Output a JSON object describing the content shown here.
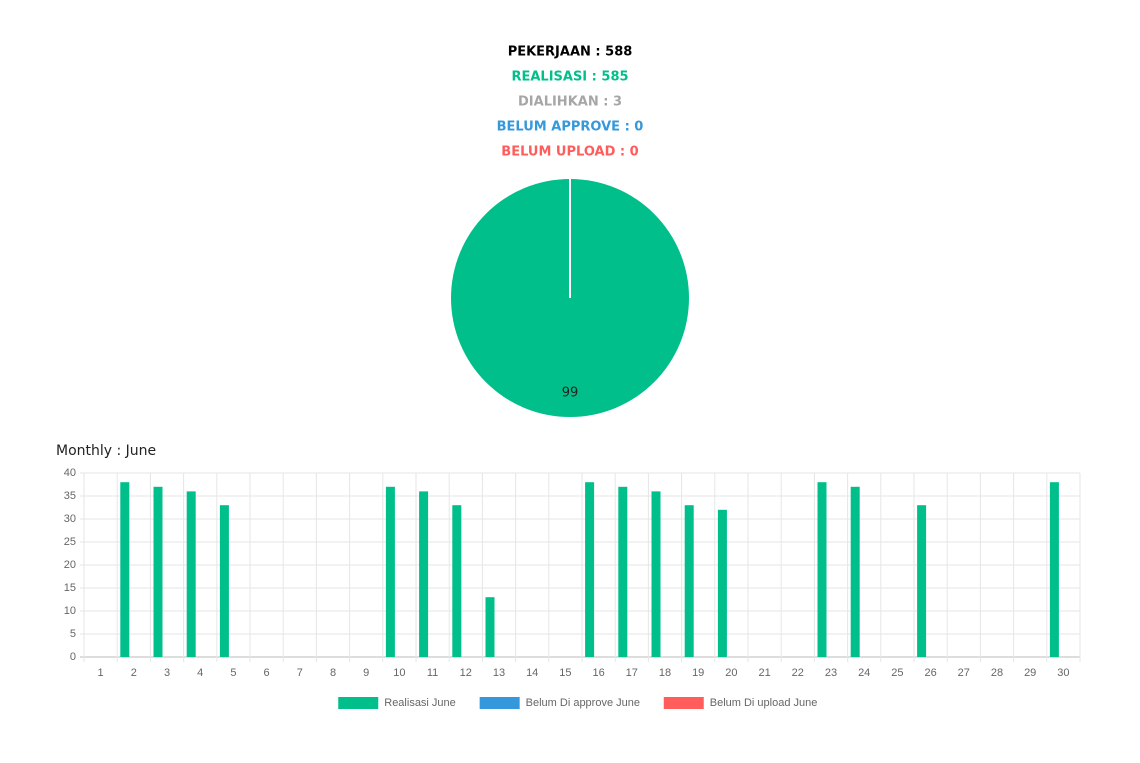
{
  "summary": {
    "lines": [
      {
        "text": "PEKERJAAN : 588",
        "color": "#000000"
      },
      {
        "text": "REALISASI : 585",
        "color": "#00bf8a"
      },
      {
        "text": "DIALIHKAN : 3",
        "color": "#a6a6a6"
      },
      {
        "text": "BELUM APPROVE : 0",
        "color": "#3498db"
      },
      {
        "text": "BELUM UPLOAD : 0",
        "color": "#ff5c5c"
      }
    ]
  },
  "chart_data": [
    {
      "type": "pie",
      "values": [
        99
      ],
      "colors": [
        "#00bf8a"
      ]
    },
    {
      "type": "bar",
      "title": "Monthly : June",
      "categories": [
        "1",
        "2",
        "3",
        "4",
        "5",
        "6",
        "7",
        "8",
        "9",
        "10",
        "11",
        "12",
        "13",
        "14",
        "15",
        "16",
        "17",
        "18",
        "19",
        "20",
        "21",
        "22",
        "23",
        "24",
        "25",
        "26",
        "27",
        "28",
        "29",
        "30"
      ],
      "series": [
        {
          "name": "Realisasi June",
          "color": "#00bf8a",
          "values": [
            0,
            38,
            37,
            36,
            33,
            0,
            0,
            0,
            0,
            37,
            36,
            33,
            13,
            0,
            0,
            38,
            37,
            36,
            33,
            32,
            0,
            0,
            38,
            37,
            0,
            33,
            0,
            0,
            0,
            38
          ]
        },
        {
          "name": "Belum Di approve June",
          "color": "#3498db",
          "values": [
            0,
            0,
            0,
            0,
            0,
            0,
            0,
            0,
            0,
            0,
            0,
            0,
            0,
            0,
            0,
            0,
            0,
            0,
            0,
            0,
            0,
            0,
            0,
            0,
            0,
            0,
            0,
            0,
            0,
            0
          ]
        },
        {
          "name": "Belum Di upload June",
          "color": "#ff5c5c",
          "values": [
            0,
            0,
            0,
            0,
            0,
            0,
            0,
            0,
            0,
            0,
            0,
            0,
            0,
            0,
            0,
            0,
            0,
            0,
            0,
            0,
            0,
            0,
            0,
            0,
            0,
            0,
            0,
            0,
            0,
            0
          ]
        }
      ],
      "ylim": [
        0,
        40
      ],
      "yticks": [
        0,
        5,
        10,
        15,
        20,
        25,
        30,
        35,
        40
      ],
      "grid": true,
      "legend": "bottom"
    }
  ]
}
